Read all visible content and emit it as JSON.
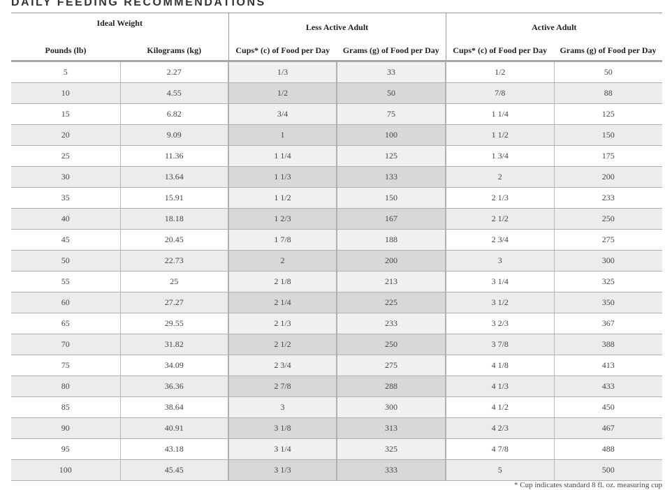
{
  "title": "DAILY FEEDING RECOMMENDATIONS",
  "table": {
    "group_headers": {
      "ideal_weight": "Ideal Weight",
      "less_active": "Less Active Adult",
      "active": "Active Adult"
    },
    "columns": [
      "Pounds (lb)",
      "Kilograms (kg)",
      "Cups* (c) of Food per Day",
      "Grams (g) of Food per Day",
      "Cups* (c) of Food per Day",
      "Grams (g) of Food per Day"
    ],
    "rows": [
      [
        "5",
        "2.27",
        "1/3",
        "33",
        "1/2",
        "50"
      ],
      [
        "10",
        "4.55",
        "1/2",
        "50",
        "7/8",
        "88"
      ],
      [
        "15",
        "6.82",
        "3/4",
        "75",
        "1 1/4",
        "125"
      ],
      [
        "20",
        "9.09",
        "1",
        "100",
        "1 1/2",
        "150"
      ],
      [
        "25",
        "11.36",
        "1 1/4",
        "125",
        "1 3/4",
        "175"
      ],
      [
        "30",
        "13.64",
        "1 1/3",
        "133",
        "2",
        "200"
      ],
      [
        "35",
        "15.91",
        "1 1/2",
        "150",
        "2 1/3",
        "233"
      ],
      [
        "40",
        "18.18",
        "1 2/3",
        "167",
        "2 1/2",
        "250"
      ],
      [
        "45",
        "20.45",
        "1 7/8",
        "188",
        "2 3/4",
        "275"
      ],
      [
        "50",
        "22.73",
        "2",
        "200",
        "3",
        "300"
      ],
      [
        "55",
        "25",
        "2 1/8",
        "213",
        "3 1/4",
        "325"
      ],
      [
        "60",
        "27.27",
        "2 1/4",
        "225",
        "3 1/2",
        "350"
      ],
      [
        "65",
        "29.55",
        "2 1/3",
        "233",
        "3 2/3",
        "367"
      ],
      [
        "70",
        "31.82",
        "2 1/2",
        "250",
        "3 7/8",
        "388"
      ],
      [
        "75",
        "34.09",
        "2 3/4",
        "275",
        "4 1/8",
        "413"
      ],
      [
        "80",
        "36.36",
        "2 7/8",
        "288",
        "4 1/3",
        "433"
      ],
      [
        "85",
        "38.64",
        "3",
        "300",
        "4 1/2",
        "450"
      ],
      [
        "90",
        "40.91",
        "3 1/8",
        "313",
        "4 2/3",
        "467"
      ],
      [
        "95",
        "43.18",
        "3 1/4",
        "325",
        "4 7/8",
        "488"
      ],
      [
        "100",
        "45.45",
        "3 1/3",
        "333",
        "5",
        "500"
      ]
    ]
  },
  "footnote": "* Cup indicates standard 8 fl. oz. measuring cup"
}
